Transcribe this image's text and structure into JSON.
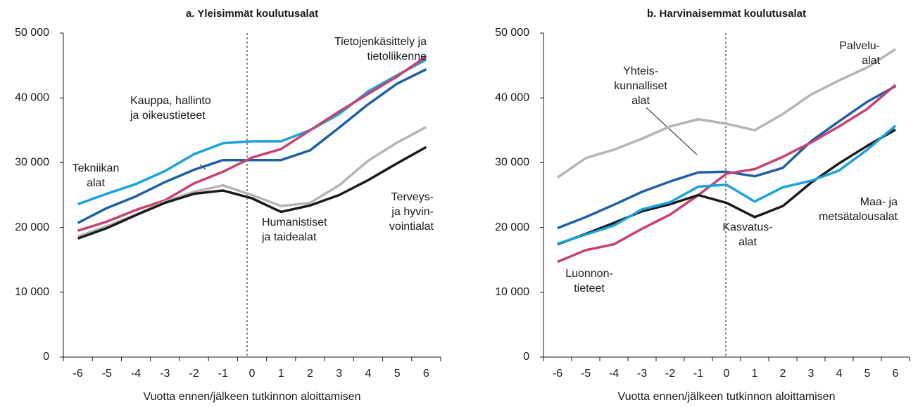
{
  "chart_data": [
    {
      "type": "line",
      "title": "a. Yleisimmät koulutusalat",
      "x_label": "Vuotta ennen/jälkeen tutkinnon aloittamisen",
      "categories": [
        "-6",
        "-5",
        "-4",
        "-3",
        "-2",
        "-1",
        "0",
        "1",
        "2",
        "3",
        "4",
        "5",
        "6"
      ],
      "ylim": [
        0,
        50000
      ],
      "yticks": [
        {
          "value": 0,
          "label": "0"
        },
        {
          "value": 10000,
          "label": "10 000"
        },
        {
          "value": 20000,
          "label": "20 000"
        },
        {
          "value": 30000,
          "label": "30 000"
        },
        {
          "value": 40000,
          "label": "40 000"
        },
        {
          "value": 50000,
          "label": "50 000"
        }
      ],
      "series": [
        {
          "label_lines": [
            "Tekniikan",
            "alat"
          ],
          "color": "#1ba1db",
          "values": [
            23600,
            25200,
            26700,
            28700,
            31300,
            33000,
            33300,
            33300,
            35000,
            37500,
            41000,
            43500,
            45900
          ]
        },
        {
          "label_lines": [
            "Kauppa, hallinto",
            "ja oikeustieteet"
          ],
          "color": "#1f5fa8",
          "values": [
            20700,
            23000,
            24800,
            27000,
            28900,
            30400,
            30400,
            30400,
            31900,
            35400,
            39000,
            42200,
            44400
          ]
        },
        {
          "label_lines": [
            "Tietojenkäsittely ja",
            "tietoliikenne"
          ],
          "color": "#c8426f",
          "values": [
            19500,
            20900,
            22700,
            24200,
            26800,
            28600,
            30800,
            32100,
            35000,
            37900,
            40600,
            43300,
            46400
          ]
        },
        {
          "label_lines": [
            "Terveys-",
            "ja hyvin-",
            "vointialat"
          ],
          "color": "#b5b5b5",
          "values": [
            18600,
            20200,
            22000,
            24000,
            25500,
            26500,
            25000,
            23300,
            23800,
            26500,
            30300,
            33100,
            35500
          ]
        },
        {
          "label_lines": [
            "Humanistiset",
            "ja taidealat"
          ],
          "color": "#1a1a1a",
          "values": [
            18300,
            19900,
            21900,
            23800,
            25200,
            25700,
            24500,
            22400,
            23400,
            25000,
            27300,
            29900,
            32400
          ]
        }
      ]
    },
    {
      "type": "line",
      "title": "b. Harvinaisemmat koulutusalat",
      "x_label": "Vuotta ennen/jälkeen tutkinnon aloittamisen",
      "categories": [
        "-6",
        "-5",
        "-4",
        "-3",
        "-2",
        "-1",
        "0",
        "1",
        "2",
        "3",
        "4",
        "5",
        "6"
      ],
      "ylim": [
        0,
        50000
      ],
      "yticks": [
        {
          "value": 0,
          "label": "0"
        },
        {
          "value": 10000,
          "label": "10 000"
        },
        {
          "value": 20000,
          "label": "20 000"
        },
        {
          "value": 30000,
          "label": "30 000"
        },
        {
          "value": 40000,
          "label": "40 000"
        },
        {
          "value": 50000,
          "label": "50 000"
        }
      ],
      "series": [
        {
          "label_lines": [
            "Palvelu-",
            "alat"
          ],
          "color": "#b5b5b5",
          "values": [
            27700,
            30700,
            32000,
            33700,
            35600,
            36700,
            36000,
            35000,
            37500,
            40500,
            42700,
            44700,
            47500
          ]
        },
        {
          "label_lines": [
            "Yhteis-",
            "kunnalliset",
            "alat"
          ],
          "color": "#1f5fa8",
          "values": [
            19900,
            21600,
            23500,
            25500,
            27100,
            28500,
            28600,
            27900,
            29200,
            33300,
            36400,
            39400,
            41800
          ]
        },
        {
          "label_lines": [
            "Luonnon-",
            "tieteet"
          ],
          "color": "#c8426f",
          "values": [
            14700,
            16500,
            17400,
            19800,
            22000,
            25000,
            28300,
            29000,
            30900,
            33100,
            35600,
            38300,
            42000
          ]
        },
        {
          "label_lines": [
            "Kasvatus-",
            "alat"
          ],
          "color": "#1a1a1a",
          "values": [
            17400,
            19000,
            20700,
            22500,
            23600,
            25000,
            23800,
            21600,
            23300,
            26900,
            29900,
            32600,
            35100
          ]
        },
        {
          "label_lines": [
            "Maa- ja",
            "metsätalousalat"
          ],
          "color": "#1ba1db",
          "values": [
            17500,
            18900,
            20300,
            22800,
            23900,
            26300,
            26600,
            24000,
            26200,
            27200,
            28800,
            32000,
            35700
          ]
        }
      ]
    }
  ]
}
